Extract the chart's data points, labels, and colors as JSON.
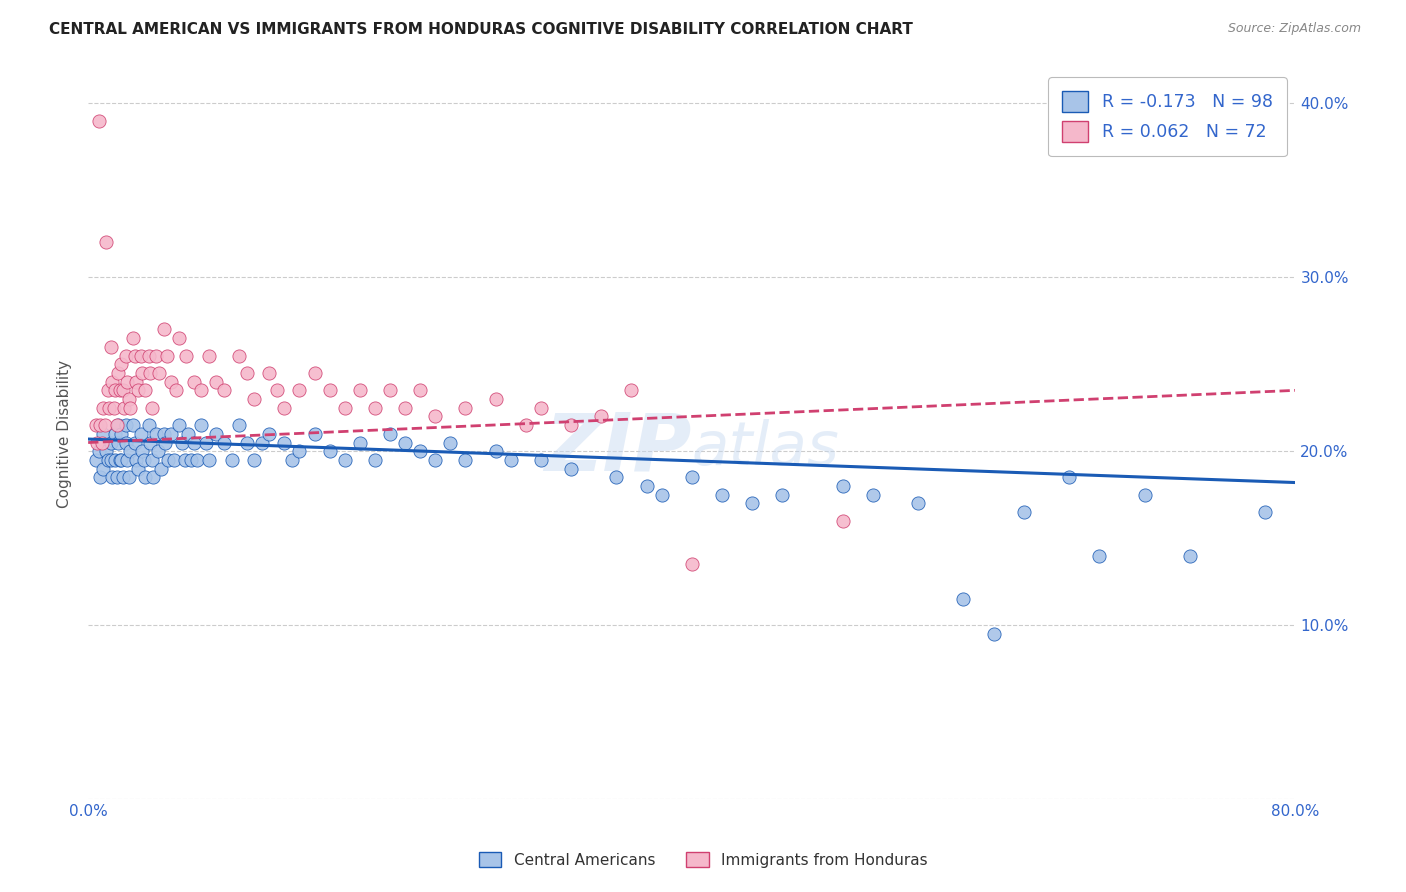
{
  "title": "CENTRAL AMERICAN VS IMMIGRANTS FROM HONDURAS COGNITIVE DISABILITY CORRELATION CHART",
  "source": "Source: ZipAtlas.com",
  "ylabel": "Cognitive Disability",
  "xlim": [
    0,
    0.8
  ],
  "ylim": [
    0,
    0.42
  ],
  "legend_label1": "Central Americans",
  "legend_label2": "Immigrants from Honduras",
  "color_blue": "#A8C4E8",
  "color_pink": "#F5B8CB",
  "line_color_blue": "#1A5BB5",
  "line_color_pink": "#D04070",
  "watermark_text": "ZIPAtlas",
  "R1": -0.173,
  "R2": 0.062,
  "N1": 98,
  "N2": 72,
  "blue_x": [
    0.005,
    0.007,
    0.008,
    0.01,
    0.01,
    0.012,
    0.013,
    0.015,
    0.015,
    0.016,
    0.018,
    0.018,
    0.019,
    0.02,
    0.02,
    0.021,
    0.022,
    0.022,
    0.023,
    0.025,
    0.025,
    0.026,
    0.027,
    0.028,
    0.03,
    0.031,
    0.032,
    0.033,
    0.035,
    0.036,
    0.037,
    0.038,
    0.04,
    0.041,
    0.042,
    0.043,
    0.045,
    0.046,
    0.048,
    0.05,
    0.051,
    0.053,
    0.055,
    0.057,
    0.06,
    0.062,
    0.064,
    0.066,
    0.068,
    0.07,
    0.072,
    0.075,
    0.078,
    0.08,
    0.085,
    0.09,
    0.095,
    0.1,
    0.105,
    0.11,
    0.115,
    0.12,
    0.13,
    0.135,
    0.14,
    0.15,
    0.16,
    0.17,
    0.18,
    0.19,
    0.2,
    0.21,
    0.22,
    0.23,
    0.24,
    0.25,
    0.27,
    0.28,
    0.3,
    0.32,
    0.35,
    0.37,
    0.38,
    0.4,
    0.42,
    0.44,
    0.46,
    0.5,
    0.52,
    0.55,
    0.58,
    0.6,
    0.62,
    0.65,
    0.67,
    0.7,
    0.73,
    0.78
  ],
  "blue_y": [
    0.195,
    0.2,
    0.185,
    0.21,
    0.19,
    0.2,
    0.195,
    0.205,
    0.195,
    0.185,
    0.21,
    0.195,
    0.185,
    0.215,
    0.205,
    0.195,
    0.21,
    0.195,
    0.185,
    0.215,
    0.205,
    0.195,
    0.185,
    0.2,
    0.215,
    0.205,
    0.195,
    0.19,
    0.21,
    0.2,
    0.195,
    0.185,
    0.215,
    0.205,
    0.195,
    0.185,
    0.21,
    0.2,
    0.19,
    0.21,
    0.205,
    0.195,
    0.21,
    0.195,
    0.215,
    0.205,
    0.195,
    0.21,
    0.195,
    0.205,
    0.195,
    0.215,
    0.205,
    0.195,
    0.21,
    0.205,
    0.195,
    0.215,
    0.205,
    0.195,
    0.205,
    0.21,
    0.205,
    0.195,
    0.2,
    0.21,
    0.2,
    0.195,
    0.205,
    0.195,
    0.21,
    0.205,
    0.2,
    0.195,
    0.205,
    0.195,
    0.2,
    0.195,
    0.195,
    0.19,
    0.185,
    0.18,
    0.175,
    0.185,
    0.175,
    0.17,
    0.175,
    0.18,
    0.175,
    0.17,
    0.115,
    0.095,
    0.165,
    0.185,
    0.14,
    0.175,
    0.14,
    0.165
  ],
  "pink_x": [
    0.005,
    0.006,
    0.007,
    0.008,
    0.009,
    0.01,
    0.011,
    0.012,
    0.013,
    0.014,
    0.015,
    0.016,
    0.017,
    0.018,
    0.019,
    0.02,
    0.021,
    0.022,
    0.023,
    0.024,
    0.025,
    0.026,
    0.027,
    0.028,
    0.03,
    0.031,
    0.032,
    0.033,
    0.035,
    0.036,
    0.038,
    0.04,
    0.041,
    0.042,
    0.045,
    0.047,
    0.05,
    0.052,
    0.055,
    0.058,
    0.06,
    0.065,
    0.07,
    0.075,
    0.08,
    0.085,
    0.09,
    0.1,
    0.105,
    0.11,
    0.12,
    0.125,
    0.13,
    0.14,
    0.15,
    0.16,
    0.17,
    0.18,
    0.19,
    0.2,
    0.21,
    0.22,
    0.23,
    0.25,
    0.27,
    0.29,
    0.3,
    0.32,
    0.34,
    0.36,
    0.4,
    0.5
  ],
  "pink_y": [
    0.215,
    0.205,
    0.39,
    0.215,
    0.205,
    0.225,
    0.215,
    0.32,
    0.235,
    0.225,
    0.26,
    0.24,
    0.225,
    0.235,
    0.215,
    0.245,
    0.235,
    0.25,
    0.235,
    0.225,
    0.255,
    0.24,
    0.23,
    0.225,
    0.265,
    0.255,
    0.24,
    0.235,
    0.255,
    0.245,
    0.235,
    0.255,
    0.245,
    0.225,
    0.255,
    0.245,
    0.27,
    0.255,
    0.24,
    0.235,
    0.265,
    0.255,
    0.24,
    0.235,
    0.255,
    0.24,
    0.235,
    0.255,
    0.245,
    0.23,
    0.245,
    0.235,
    0.225,
    0.235,
    0.245,
    0.235,
    0.225,
    0.235,
    0.225,
    0.235,
    0.225,
    0.235,
    0.22,
    0.225,
    0.23,
    0.215,
    0.225,
    0.215,
    0.22,
    0.235,
    0.135,
    0.16
  ]
}
